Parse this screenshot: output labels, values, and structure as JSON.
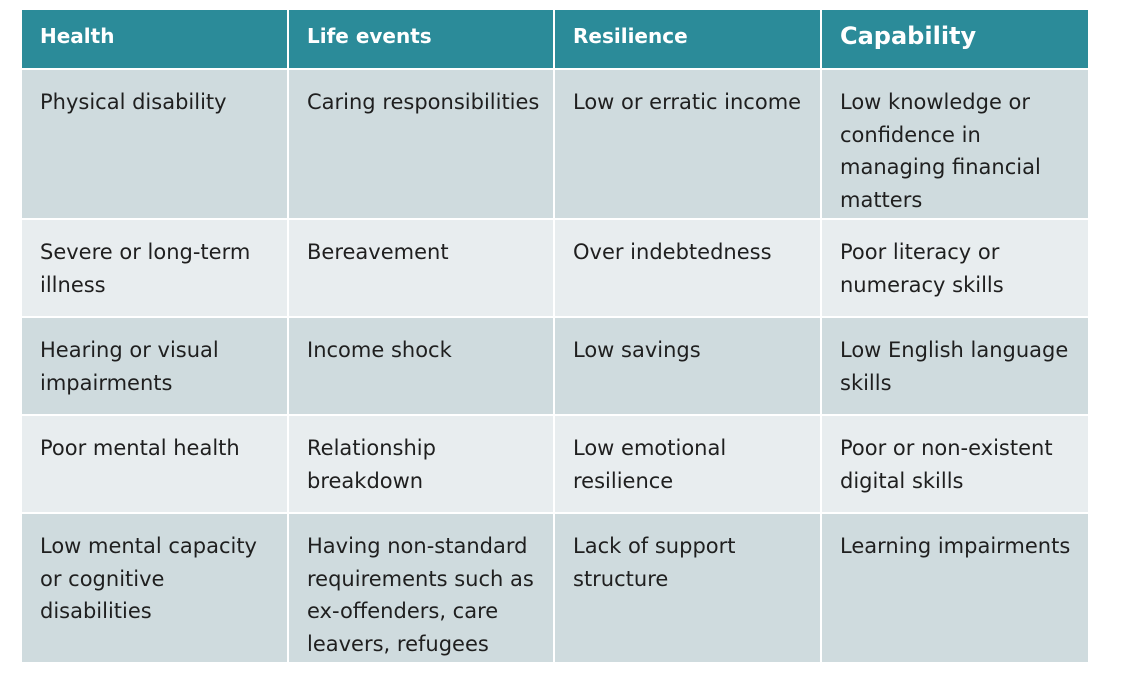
{
  "table": {
    "headers": [
      "Health",
      "Life events",
      "Resilience",
      "Capability"
    ],
    "rows": [
      [
        "Physical disability",
        "Caring responsibilities",
        "Low or erratic income",
        "Low knowledge or confidence in managing financial matters"
      ],
      [
        "Severe or long-term illness",
        "Bereavement",
        "Over indebtedness",
        "Poor literacy or numeracy skills"
      ],
      [
        "Hearing or visual impairments",
        "Income shock",
        "Low savings",
        "Low English language skills"
      ],
      [
        "Poor mental health",
        "Relationship breakdown",
        "Low emotional resilience",
        "Poor or non-existent digital skills"
      ],
      [
        "Low mental capacity or cognitive disabilities",
        "Having non-standard requirements such as ex-offenders, care leavers, refugees",
        "Lack of support structure",
        "Learning impairments"
      ]
    ]
  },
  "colors": {
    "header_bg": "#2b8b99",
    "header_text": "#ffffff",
    "row_odd_bg": "#cfdbde",
    "row_even_bg": "#e8edef",
    "cell_text": "#1f1f1f"
  }
}
